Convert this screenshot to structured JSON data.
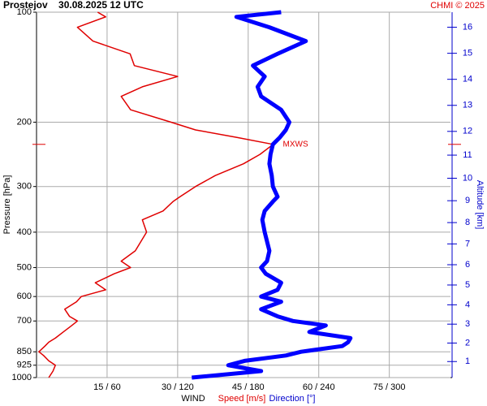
{
  "chart_data": {
    "type": "line",
    "title": "Prostejov    30.08.2025 12 UTC",
    "credit": "CHMI © 2025",
    "ylabel": "Pressure [hPa]",
    "y2label": "Altitude [km]",
    "xlabel": "WIND",
    "xlabel_speed": "Speed [m/s]",
    "xlabel_direction": "Direction [°]",
    "annotation": "MXWS",
    "y_scale": "log",
    "grid": true,
    "y": [
      1000,
      960,
      925,
      900,
      870,
      850,
      820,
      800,
      780,
      750,
      720,
      700,
      680,
      650,
      620,
      600,
      575,
      550,
      520,
      500,
      480,
      450,
      400,
      370,
      350,
      330,
      320,
      300,
      280,
      260,
      245,
      230,
      220,
      210,
      200,
      185,
      170,
      160,
      150,
      140,
      130,
      120,
      110,
      103,
      100
    ],
    "series": [
      {
        "name": "Speed [m/s]",
        "color": "#e00000",
        "axis": "x",
        "values": [
          2.6,
          3.5,
          4,
          2.6,
          1.5,
          0.5,
          1.8,
          2.6,
          4,
          5.7,
          7.5,
          8.7,
          7,
          6,
          8.5,
          9.5,
          14.7,
          12.5,
          16.5,
          20,
          18,
          21,
          23.4,
          22.5,
          26.9,
          29,
          30.5,
          33.8,
          38,
          44,
          47.5,
          50.3,
          42.5,
          33.8,
          28.6,
          20,
          18,
          22.5,
          30,
          20.8,
          19.9,
          12,
          8.7,
          14.7,
          13
        ]
      },
      {
        "name": "Direction [°]",
        "color": "#0000ff",
        "axis": "x2",
        "values": [
          132,
          191,
          163,
          177,
          212,
          225,
          260,
          265,
          267,
          232,
          246,
          218,
          205,
          191,
          208,
          191,
          205,
          208,
          195,
          191,
          196,
          198,
          194,
          192,
          194,
          201,
          205,
          201,
          200,
          198,
          199,
          201,
          207,
          212,
          215,
          208,
          191,
          188,
          194,
          184,
          205,
          229,
          198,
          170,
          208
        ]
      }
    ],
    "xlim": [
      0,
      88
    ],
    "x2lim": [
      0,
      352
    ],
    "xticks": [
      {
        "value": 15,
        "label": "15 / 60"
      },
      {
        "value": 30,
        "label": "30 / 120"
      },
      {
        "value": 45,
        "label": "45 / 180"
      },
      {
        "value": 60,
        "label": "60 / 240"
      },
      {
        "value": 75,
        "label": "75 / 300"
      }
    ],
    "ylim": [
      1000,
      100
    ],
    "yticks": [
      100,
      200,
      300,
      400,
      500,
      600,
      700,
      850,
      925,
      1000
    ],
    "y2ticks": [
      1,
      2,
      3,
      4,
      5,
      6,
      7,
      8,
      9,
      10,
      11,
      12,
      13,
      14,
      15,
      16
    ]
  }
}
